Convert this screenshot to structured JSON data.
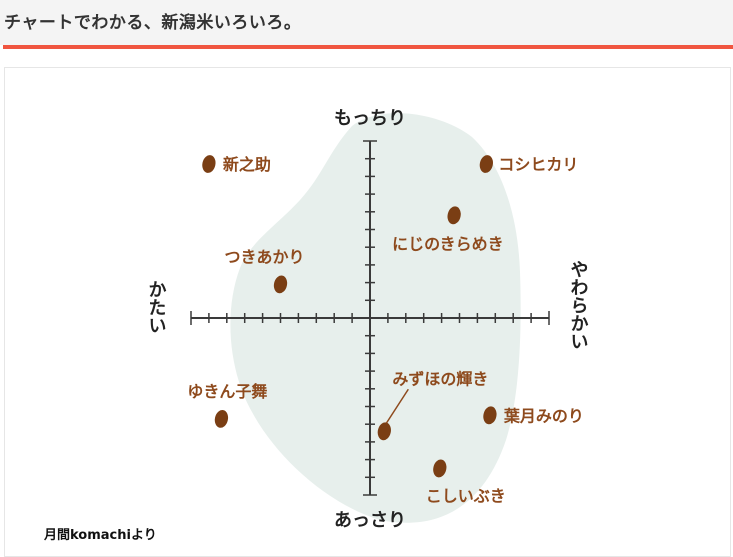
{
  "header": {
    "title": "チャートでわかる、新潟米いろいろ。"
  },
  "credit": "月間komachiより",
  "colors": {
    "accent": "#f05540",
    "header_bg": "#f4f4f4",
    "blob": "#e7efec",
    "axis": "#3a3a3a",
    "grain": "#7a3e14",
    "label": "#8e4a1d",
    "axis_text": "#222222"
  },
  "chart_data": {
    "type": "scatter",
    "title": "",
    "axes": {
      "top": "もっちり",
      "bottom": "あっさり",
      "left": "かたい",
      "right": "やわらかい"
    },
    "xlim": [
      -10,
      10
    ],
    "ylim": [
      -10,
      10
    ],
    "points": [
      {
        "name": "新之助",
        "x": -9,
        "y": 8.7
      },
      {
        "name": "コシヒカリ",
        "x": 6.5,
        "y": 8.7
      },
      {
        "name": "にじのきらめき",
        "x": 4.7,
        "y": 5.8
      },
      {
        "name": "つきあかり",
        "x": -5,
        "y": 1.9
      },
      {
        "name": "ゆきん子舞",
        "x": -8.3,
        "y": -5.7
      },
      {
        "name": "みずほの輝き",
        "x": 0.8,
        "y": -6.4
      },
      {
        "name": "葉月みのり",
        "x": 6.7,
        "y": -5.5
      },
      {
        "name": "こしいぶき",
        "x": 3.9,
        "y": -8.5
      }
    ]
  }
}
